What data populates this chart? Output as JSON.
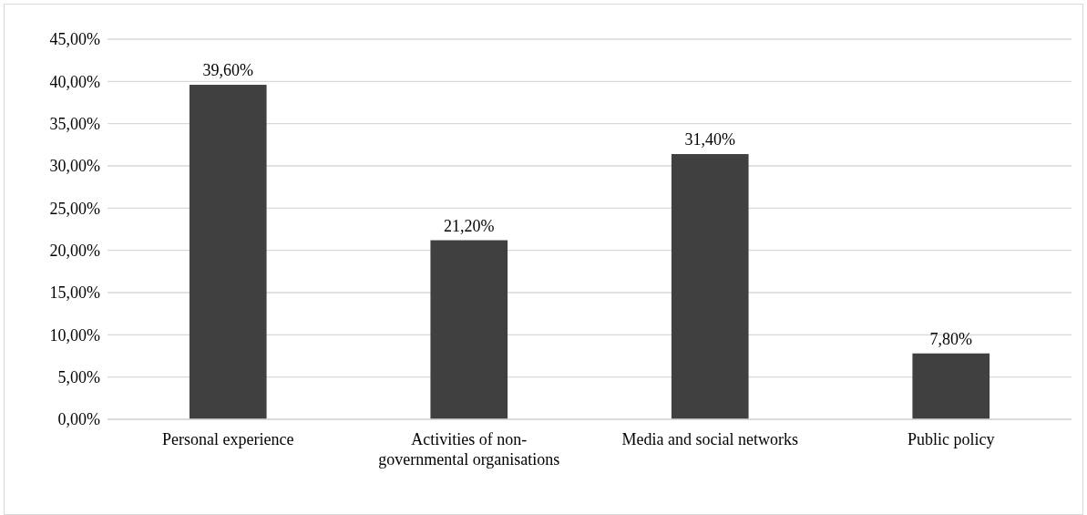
{
  "chart_data": {
    "type": "bar",
    "categories": [
      "Personal experience",
      "Activities of non-governmental organisations",
      "Media and social networks",
      "Public policy"
    ],
    "values": [
      39.6,
      21.2,
      31.4,
      7.8
    ],
    "value_labels": [
      "39,60%",
      "21,20%",
      "31,40%",
      "7,80%"
    ],
    "color": "#404040",
    "ylim": [
      0,
      45
    ],
    "yticks": [
      {
        "value": 0,
        "label": "0,00%"
      },
      {
        "value": 5,
        "label": "5,00%"
      },
      {
        "value": 10,
        "label": "10,00%"
      },
      {
        "value": 15,
        "label": "15,00%"
      },
      {
        "value": 20,
        "label": "20,00%"
      },
      {
        "value": 25,
        "label": "25,00%"
      },
      {
        "value": 30,
        "label": "30,00%"
      },
      {
        "value": 35,
        "label": "35,00%"
      },
      {
        "value": 40,
        "label": "40,00%"
      },
      {
        "value": 45,
        "label": "45,00%"
      }
    ],
    "grid": "y"
  }
}
